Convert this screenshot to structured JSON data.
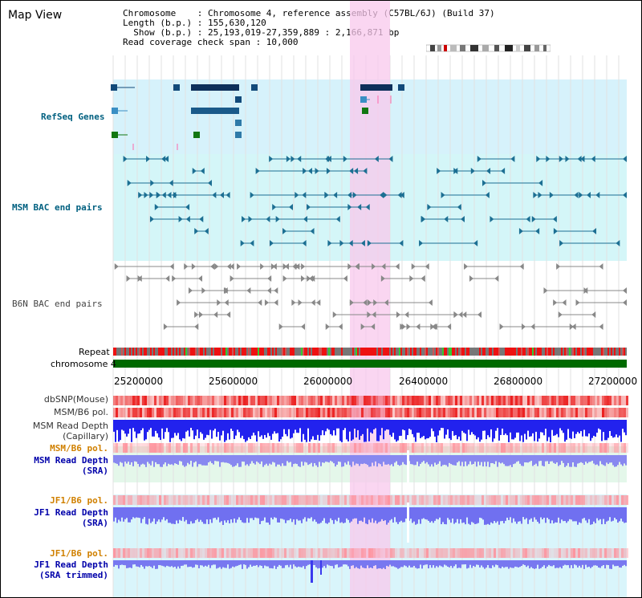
{
  "title": "Map View",
  "info": {
    "line1": "Chromosome    : Chromosome 4, reference assembly (C57BL/6J) (Build 37)",
    "line2": "Length (b.p.) : 155,630,120",
    "line3": "  Show (b.p.) : 25,193,019-27,359,889 : 2,166,871 bp",
    "line4": "Read coverage check span : 10,000"
  },
  "tracks": {
    "refseq": "RefSeq Genes",
    "msm_bac": "MSM BAC end pairs",
    "b6n_bac": "B6N BAC end pairs",
    "repeat": "Repeat",
    "chrom": "chromosome 4"
  },
  "ticks": [
    "25200000",
    "25600000",
    "26000000",
    "26400000",
    "26800000",
    "27200000"
  ],
  "right_tracks": {
    "dbsnp": "dbSNP(Mouse)",
    "msm_pol": "MSM/B6 pol.",
    "msm_depth_cap": "MSM Read Depth\n(Capillary)",
    "msm_pol2": "MSM/B6 pol.",
    "msm_depth_sra": "MSM Read Depth\n(SRA)",
    "jf1_pol": "JF1/B6 pol.",
    "jf1_depth_sra": "JF1 Read Depth\n(SRA)",
    "jf1_pol2": "JF1/B6 pol.",
    "jf1_depth_trim": "JF1 Read Depth\n(SRA trimmed)"
  },
  "colors": {
    "highlight": "#f8c8ec",
    "refseq_bg": "#d6f2fb",
    "msm_bg": "#d4f6f8",
    "snp_red": "#ee2222",
    "depth_blue": "#3a3aee",
    "chrom_green": "#006a00"
  }
}
